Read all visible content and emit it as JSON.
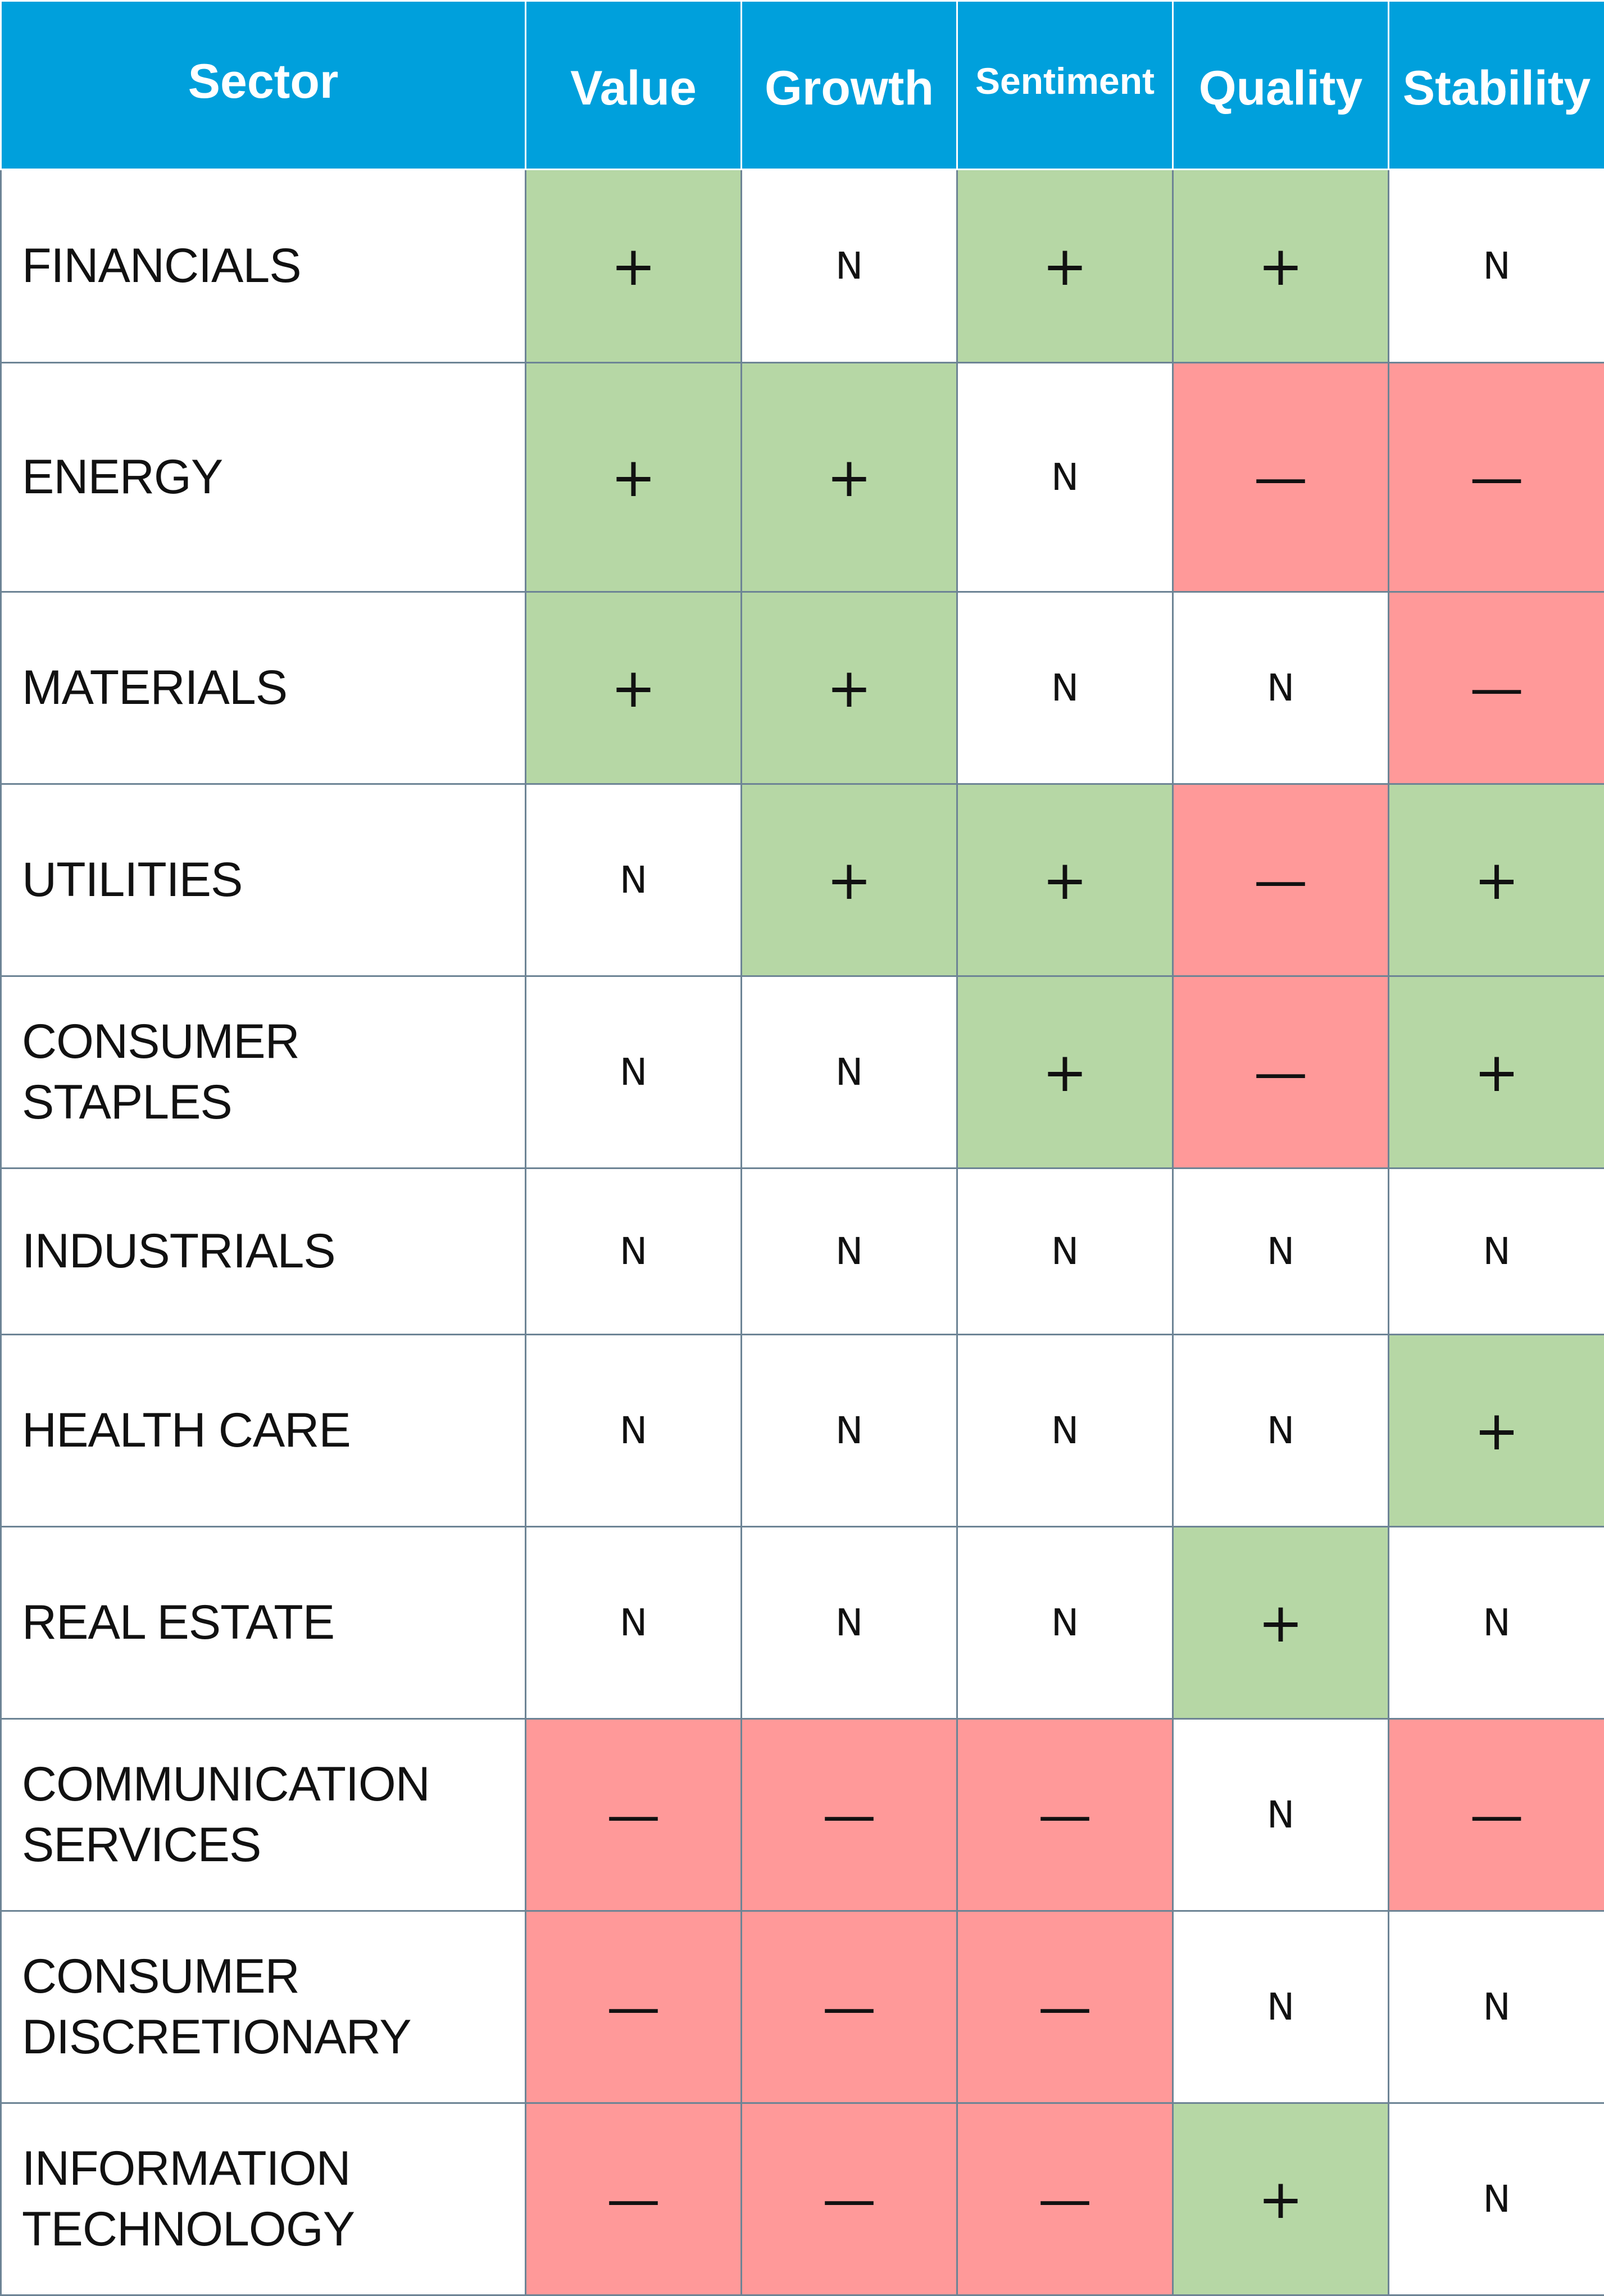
{
  "chart_data": {
    "type": "table",
    "columns": [
      "Sector",
      "Value",
      "Growth",
      "Sentiment",
      "Quality",
      "Stability"
    ],
    "rows": [
      {
        "sector": "FINANCIALS",
        "values": [
          "+",
          "N",
          "+",
          "+",
          "N"
        ]
      },
      {
        "sector": "ENERGY",
        "values": [
          "+",
          "+",
          "N",
          "—",
          "—"
        ]
      },
      {
        "sector": "MATERIALS",
        "values": [
          "+",
          "+",
          "N",
          "N",
          "—"
        ]
      },
      {
        "sector": "UTILITIES",
        "values": [
          "N",
          "+",
          "+",
          "—",
          "+"
        ]
      },
      {
        "sector": "CONSUMER STAPLES",
        "values": [
          "N",
          "N",
          "+",
          "—",
          "+"
        ]
      },
      {
        "sector": "INDUSTRIALS",
        "values": [
          "N",
          "N",
          "N",
          "N",
          "N"
        ]
      },
      {
        "sector": "HEALTH CARE",
        "values": [
          "N",
          "N",
          "N",
          "N",
          "+"
        ]
      },
      {
        "sector": "REAL ESTATE",
        "values": [
          "N",
          "N",
          "N",
          "+",
          "N"
        ]
      },
      {
        "sector": "COMMUNICATION SERVICES",
        "values": [
          "—",
          "—",
          "—",
          "N",
          "—"
        ]
      },
      {
        "sector": "CONSUMER DISCRETIONARY",
        "values": [
          "—",
          "—",
          "—",
          "N",
          "N"
        ]
      },
      {
        "sector": "INFORMATION TECHNOLOGY",
        "values": [
          "—",
          "—",
          "—",
          "+",
          "N"
        ]
      }
    ]
  },
  "colors": {
    "header_background": "#00a0dc",
    "header_text": "#ffffff",
    "positive_background": "#b6d7a5",
    "negative_background": "#ff9999",
    "neutral_background": "#ffffff",
    "grid_line": "#6d8495"
  }
}
